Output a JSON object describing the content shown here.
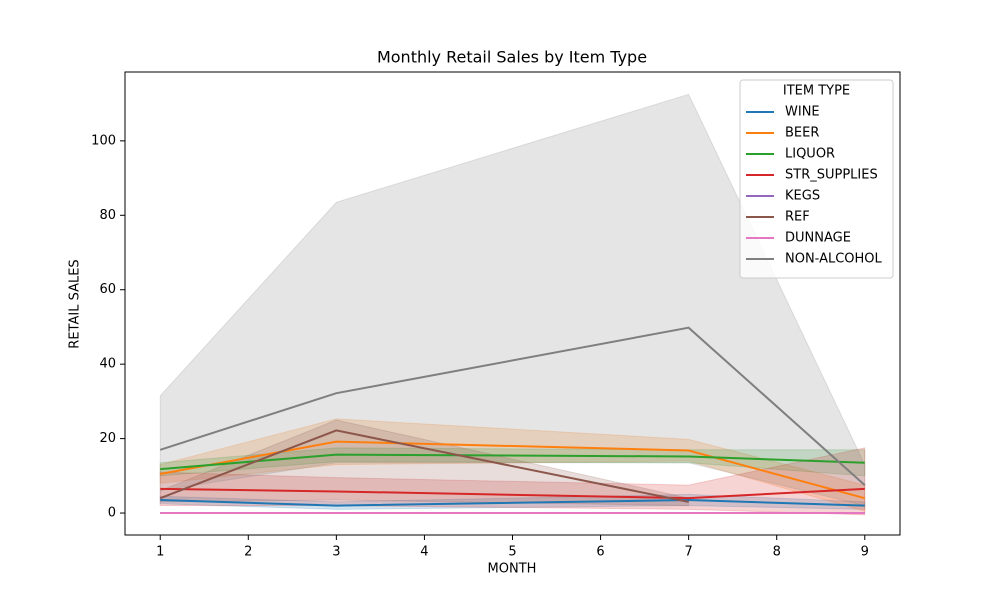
{
  "chart_data": {
    "type": "line",
    "title": "Monthly Retail Sales by Item Type",
    "x_label": "MONTH",
    "y_label": "RETAIL SALES",
    "legend_title": "ITEM TYPE",
    "legend_position": "upper right",
    "x": [
      1,
      3,
      7,
      9
    ],
    "xlim": [
      0.6,
      9.4
    ],
    "xticks": [
      1,
      2,
      3,
      4,
      5,
      6,
      7,
      8,
      9
    ],
    "ylim": [
      -5.9,
      118.5
    ],
    "yticks": [
      0,
      20,
      40,
      60,
      80,
      100
    ],
    "series": [
      {
        "name": "WINE",
        "color": "#1f77b4",
        "values": [
          3.5,
          2.0,
          3.5,
          2.0
        ],
        "lower": [
          2.5,
          1.0,
          2.0,
          1.0
        ],
        "upper": [
          4.5,
          3.0,
          5.0,
          3.0
        ]
      },
      {
        "name": "BEER",
        "color": "#ff7f0e",
        "values": [
          10.5,
          19.2,
          16.8,
          4.0
        ],
        "lower": [
          8,
          13,
          14,
          0.5
        ],
        "upper": [
          13,
          25.3,
          19.8,
          7.5
        ]
      },
      {
        "name": "LIQUOR",
        "color": "#2ca02c",
        "values": [
          11.8,
          15.7,
          15.2,
          13.5
        ],
        "lower": [
          10,
          13.8,
          13.5,
          10
        ],
        "upper": [
          13.5,
          17.5,
          17,
          17
        ]
      },
      {
        "name": "STR_SUPPLIES",
        "color": "#d62728",
        "values": [
          6.5,
          5.8,
          4.0,
          6.5
        ],
        "lower": [
          2,
          2,
          1,
          -0.5
        ],
        "upper": [
          11,
          9.5,
          7.5,
          17.5
        ]
      },
      {
        "name": "KEGS",
        "color": "#9467bd",
        "values": [
          0,
          0,
          0,
          0
        ],
        "lower": [
          0,
          0,
          0,
          0
        ],
        "upper": [
          0,
          0,
          0,
          0
        ]
      },
      {
        "name": "REF",
        "color": "#8c564b",
        "values": [
          4.0,
          22.2,
          3.0,
          null
        ],
        "lower": [
          3,
          3.5,
          2,
          null
        ],
        "upper": [
          6,
          25,
          4,
          null
        ]
      },
      {
        "name": "DUNNAGE",
        "color": "#e377c2",
        "values": [
          0,
          0,
          0,
          0
        ],
        "lower": [
          0,
          0,
          0,
          0
        ],
        "upper": [
          0,
          0,
          0,
          0
        ]
      },
      {
        "name": "NON-ALCOHOL",
        "color": "#7f7f7f",
        "values": [
          17,
          32.2,
          49.8,
          7.5
        ],
        "lower": [
          6,
          13.5,
          13.5,
          2
        ],
        "upper": [
          31.5,
          83.5,
          112.5,
          13
        ]
      }
    ]
  }
}
